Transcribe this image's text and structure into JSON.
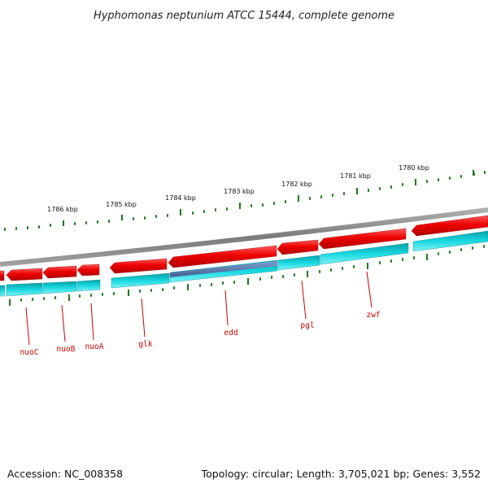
{
  "title": "Hyphomonas neptunium ATCC 15444, complete genome",
  "footer": {
    "accession": "Accession: NC_008358",
    "summary": "Topology: circular; Length: 3,705,021 bp; Genes: 3,552"
  },
  "kbp_labels": [
    "1786 kbp",
    "1785 kbp",
    "1784 kbp",
    "1783 kbp",
    "1782 kbp",
    "1781 kbp",
    "1780 kbp"
  ],
  "genes": [
    {
      "name": "nuoC"
    },
    {
      "name": "nuoB"
    },
    {
      "name": "nuoA"
    },
    {
      "name": "glk"
    },
    {
      "name": "edd"
    },
    {
      "name": "pgl"
    },
    {
      "name": "zwf"
    }
  ],
  "colors": {
    "forward_strand": "#e01010",
    "reverse_strand": "#18d8e0",
    "backbone": "#8a8a8a",
    "ticks": "#1a7a1a",
    "label": "#cc0000",
    "highlight": "#5577aa"
  }
}
